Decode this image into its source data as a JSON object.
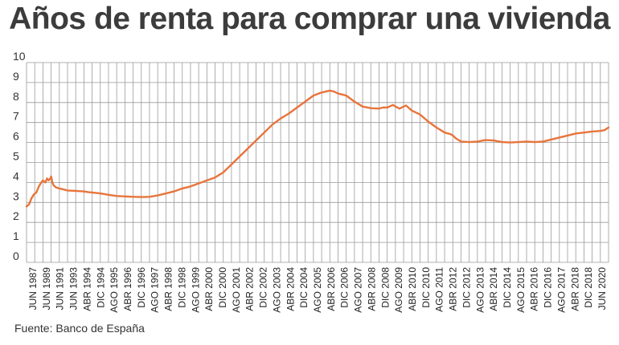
{
  "title": "Años de renta para comprar una vivienda",
  "source": "Fuente: Banco de España",
  "colors": {
    "line": "#E8743B",
    "grid": "#9a9a9a",
    "text": "#3c3c3c"
  },
  "chart_data": {
    "type": "line",
    "title": "Años de renta para comprar una vivienda",
    "xlabel": "",
    "ylabel": "",
    "ylim": [
      0,
      10
    ],
    "yticks": [
      0,
      1,
      2,
      3,
      4,
      5,
      6,
      7,
      8,
      9,
      10
    ],
    "grid": true,
    "categories": [
      "JUN 1987",
      "JUN 1989",
      "JUN 1991",
      "JUN 1993",
      "ABR 1994",
      "DIC 1994",
      "AGO 1995",
      "ABR 1996",
      "DIC 1996",
      "AGO 1997",
      "ABR 1998",
      "DIC 1998",
      "AGO 1999",
      "ABR 2000",
      "DIC 2000",
      "AGO 2001",
      "ABR 2002",
      "DIC 2002",
      "AGO 2003",
      "ABR 2004",
      "DIC 2004",
      "AGO 2005",
      "ABR 2006",
      "DIC 2006",
      "AGO 2007",
      "ABR 2008",
      "DIC 2008",
      "AGO 2009",
      "ABR 2010",
      "DIC 2010",
      "AGO 2011",
      "ABR 2012",
      "DIC 2012",
      "AGO 2013",
      "ABR 2014",
      "DIC 2014",
      "AGO 2015",
      "ABR 2016",
      "DIC 2016",
      "AGO 2017",
      "ABR 2018",
      "DIC 2018",
      "JUN 2020"
    ],
    "series": [
      {
        "name": "",
        "points": [
          [
            0,
            2.8
          ],
          [
            0.3,
            2.9
          ],
          [
            0.6,
            3.2
          ],
          [
            0.9,
            3.4
          ],
          [
            1.2,
            3.5
          ],
          [
            1.5,
            3.8
          ],
          [
            1.8,
            4.0
          ],
          [
            2.0,
            4.1
          ],
          [
            2.3,
            4.0
          ],
          [
            2.5,
            4.2
          ],
          [
            2.7,
            4.1
          ],
          [
            2.9,
            4.2
          ],
          [
            3.0,
            4.3
          ],
          [
            3.15,
            4.0
          ],
          [
            3.3,
            3.85
          ],
          [
            3.6,
            3.75
          ],
          [
            4,
            3.7
          ],
          [
            4.5,
            3.65
          ],
          [
            5,
            3.6
          ],
          [
            6,
            3.58
          ],
          [
            7,
            3.55
          ],
          [
            7.5,
            3.52
          ],
          [
            8,
            3.5
          ],
          [
            9,
            3.45
          ],
          [
            10,
            3.38
          ],
          [
            11,
            3.32
          ],
          [
            12,
            3.3
          ],
          [
            13,
            3.28
          ],
          [
            14,
            3.27
          ],
          [
            15,
            3.28
          ],
          [
            16,
            3.35
          ],
          [
            17,
            3.45
          ],
          [
            18,
            3.55
          ],
          [
            19,
            3.7
          ],
          [
            20,
            3.8
          ],
          [
            21,
            3.95
          ],
          [
            22,
            4.1
          ],
          [
            23,
            4.25
          ],
          [
            24,
            4.5
          ],
          [
            25,
            4.9
          ],
          [
            26,
            5.3
          ],
          [
            27,
            5.7
          ],
          [
            28,
            6.1
          ],
          [
            29,
            6.5
          ],
          [
            30,
            6.9
          ],
          [
            31,
            7.2
          ],
          [
            32,
            7.45
          ],
          [
            33,
            7.75
          ],
          [
            34,
            8.05
          ],
          [
            35,
            8.35
          ],
          [
            36,
            8.5
          ],
          [
            37,
            8.6
          ],
          [
            37.5,
            8.55
          ],
          [
            38,
            8.45
          ],
          [
            39,
            8.35
          ],
          [
            40,
            8.05
          ],
          [
            41,
            7.8
          ],
          [
            42,
            7.72
          ],
          [
            43,
            7.7
          ],
          [
            43.5,
            7.75
          ],
          [
            44,
            7.75
          ],
          [
            44.7,
            7.88
          ],
          [
            45,
            7.8
          ],
          [
            45.5,
            7.7
          ],
          [
            46,
            7.8
          ],
          [
            46.3,
            7.85
          ],
          [
            47,
            7.6
          ],
          [
            48,
            7.4
          ],
          [
            49,
            7.05
          ],
          [
            50,
            6.75
          ],
          [
            51,
            6.5
          ],
          [
            51.7,
            6.42
          ],
          [
            52,
            6.35
          ],
          [
            52.4,
            6.2
          ],
          [
            53,
            6.05
          ],
          [
            54,
            6.02
          ],
          [
            55,
            6.05
          ],
          [
            56,
            6.12
          ],
          [
            57,
            6.1
          ],
          [
            58,
            6.02
          ],
          [
            59,
            6.0
          ],
          [
            60,
            6.02
          ],
          [
            61,
            6.05
          ],
          [
            62,
            6.02
          ],
          [
            63,
            6.05
          ],
          [
            64,
            6.15
          ],
          [
            65,
            6.25
          ],
          [
            66,
            6.35
          ],
          [
            67,
            6.45
          ],
          [
            68,
            6.5
          ],
          [
            69,
            6.55
          ],
          [
            70,
            6.58
          ],
          [
            70.5,
            6.62
          ],
          [
            71,
            6.75
          ]
        ]
      }
    ]
  }
}
